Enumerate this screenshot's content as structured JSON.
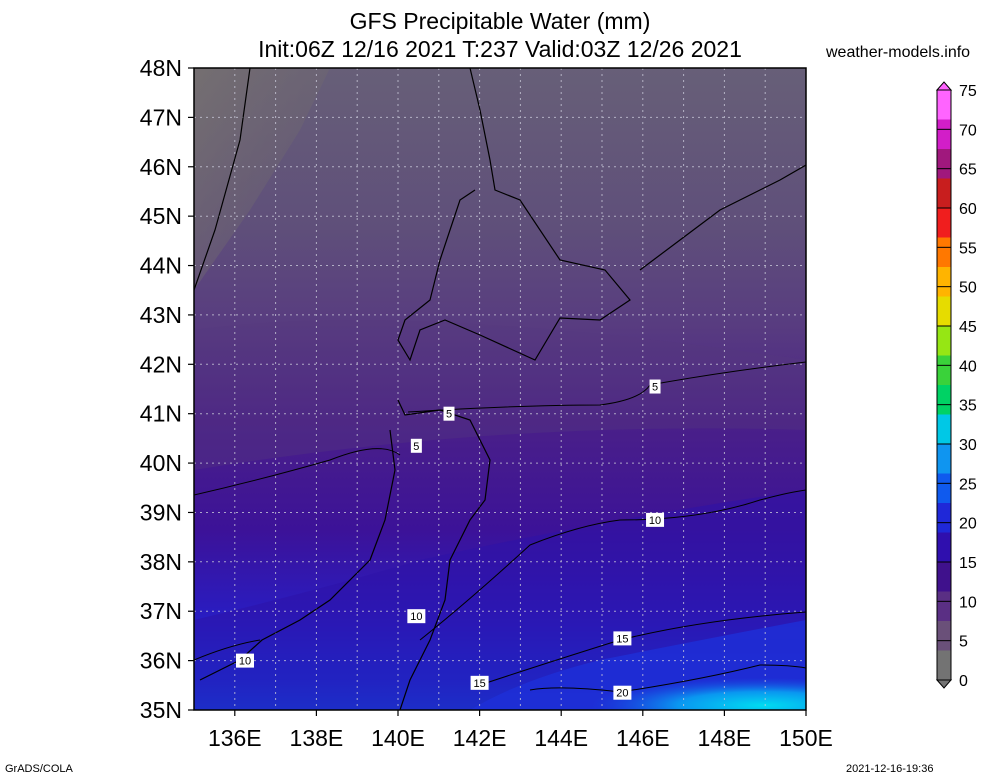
{
  "title": {
    "line1": "GFS Precipitable Water (mm)",
    "line2": "Init:06Z 12/16 2021 T:237 Valid:03Z 12/26 2021"
  },
  "site": "weather-models.info",
  "footer": {
    "left": "GrADS/COLA",
    "right": "2021-12-16-19:36"
  },
  "map": {
    "lat_labels": [
      "48N",
      "47N",
      "46N",
      "45N",
      "44N",
      "43N",
      "42N",
      "41N",
      "40N",
      "39N",
      "38N",
      "37N",
      "36N",
      "35N"
    ],
    "lon_labels": [
      "136E",
      "138E",
      "140E",
      "142E",
      "144E",
      "146E",
      "148E",
      "150E"
    ],
    "contour_labels": [
      {
        "text": "5",
        "lon": 146.3,
        "lat": 41.55
      },
      {
        "text": "5",
        "lon": 141.25,
        "lat": 41.0
      },
      {
        "text": "5",
        "lon": 140.45,
        "lat": 40.35
      },
      {
        "text": "10",
        "lon": 146.3,
        "lat": 38.85
      },
      {
        "text": "10",
        "lon": 140.45,
        "lat": 36.9
      },
      {
        "text": "10",
        "lon": 136.25,
        "lat": 36.0
      },
      {
        "text": "15",
        "lon": 145.5,
        "lat": 36.45
      },
      {
        "text": "15",
        "lon": 142.0,
        "lat": 35.55
      },
      {
        "text": "20",
        "lon": 145.5,
        "lat": 35.35
      }
    ]
  },
  "colorbar": {
    "levels": [
      "0",
      "5",
      "10",
      "15",
      "20",
      "25",
      "30",
      "35",
      "40",
      "45",
      "50",
      "55",
      "60",
      "65",
      "70",
      "75"
    ],
    "colors": [
      "#737373",
      "#6a5079",
      "#5a2f84",
      "#3f118c",
      "#2f0fae",
      "#1f28d8",
      "#0f5aee",
      "#0f95f0",
      "#00c8e6",
      "#00d264",
      "#3ad23a",
      "#96e614",
      "#e6dc00",
      "#ffb400",
      "#ff7800",
      "#f01e1e",
      "#c81e1e",
      "#a0187d",
      "#d21ec8",
      "#ff64ff"
    ]
  }
}
